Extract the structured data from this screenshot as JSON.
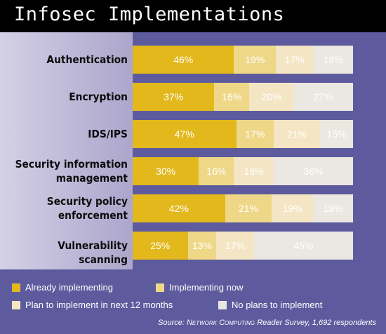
{
  "chart_data": {
    "type": "bar",
    "stacked": true,
    "orientation": "horizontal",
    "title": "Infosec Implementations",
    "categories": [
      "Authentication",
      "Encryption",
      "IDS/IPS",
      "Security information management",
      "Security policy enforcement",
      "Vulnerability scanning"
    ],
    "category_lines": [
      [
        "Authentication"
      ],
      [
        "Encryption"
      ],
      [
        "IDS/IPS"
      ],
      [
        "Security information",
        "management"
      ],
      [
        "Security policy",
        "enforcement"
      ],
      [
        "Vulnerability scanning"
      ]
    ],
    "series": [
      {
        "name": "Already implementing",
        "color": "#e2b81d",
        "label_color": "#ffffff",
        "values": [
          46,
          37,
          47,
          30,
          42,
          25
        ]
      },
      {
        "name": "Implementing now",
        "color": "#eed888",
        "label_color": "#ffffff",
        "values": [
          19,
          16,
          17,
          16,
          21,
          13
        ]
      },
      {
        "name": "Plan to implement in next 12 months",
        "color": "#f4e6c4",
        "label_color": "#ffffff",
        "values": [
          17,
          20,
          21,
          18,
          19,
          17
        ]
      },
      {
        "name": "No plans to implement",
        "color": "#ebe7e1",
        "label_color": "#ffffff",
        "values": [
          18,
          27,
          15,
          36,
          18,
          45
        ]
      }
    ],
    "value_suffix": "%",
    "xlim": [
      0,
      100
    ],
    "legend_position": "bottom",
    "source": {
      "prefix": "Source: ",
      "publication": "Network Computing",
      "suffix": " Reader Survey, 1,692 respondents"
    }
  }
}
